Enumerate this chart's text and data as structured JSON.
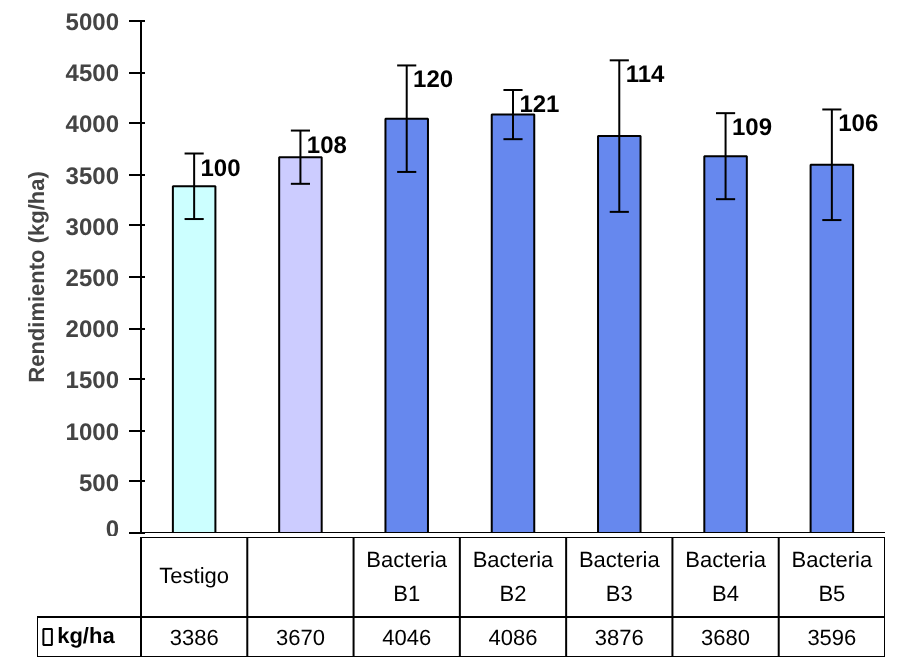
{
  "chart_data": {
    "type": "bar",
    "ylabel": "Rendimiento (kg/ha)",
    "categories": [
      "Testigo",
      null,
      "Bacteria B1",
      "Bacteria B2",
      "Bacteria B3",
      "Bacteria B4",
      "Bacteria B5"
    ],
    "series": [
      {
        "name": "kg/ha",
        "color": "#ffffff",
        "colors": [
          "#ccffff",
          "#ccccff",
          "#6688ee",
          "#6688ee",
          "#6688ee",
          "#6688ee",
          "#6688ee"
        ],
        "values": [
          3386,
          3670,
          4046,
          4086,
          3876,
          3680,
          3596
        ],
        "errors": [
          320,
          260,
          520,
          240,
          740,
          420,
          540
        ]
      }
    ],
    "annotations": [
      "100",
      "108",
      "120",
      "121",
      "114",
      "109",
      "106"
    ],
    "ylim": [
      0,
      5000
    ],
    "yticks": [
      0,
      500,
      1000,
      1500,
      2000,
      2500,
      3000,
      3500,
      4000,
      4500,
      5000
    ],
    "grid": false,
    "data_labels": true,
    "legend": "bottom"
  }
}
